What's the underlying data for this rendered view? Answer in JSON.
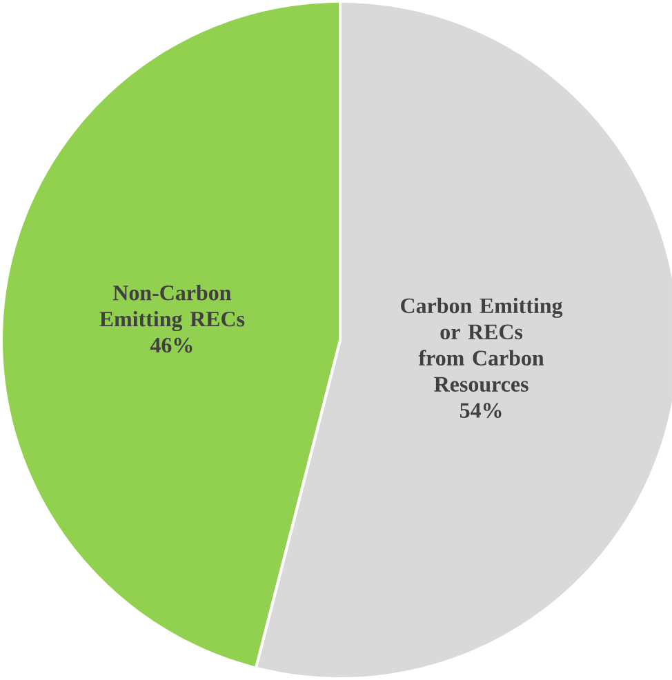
{
  "chart_data": {
    "type": "pie",
    "categories": [
      "Carbon Emitting or RECs from Carbon Resources",
      "Non-Carbon Emitting RECs"
    ],
    "values": [
      54,
      46
    ],
    "value_labels": [
      "54%",
      "46%"
    ],
    "colors": [
      "#d9d9d9",
      "#92d050"
    ]
  }
}
